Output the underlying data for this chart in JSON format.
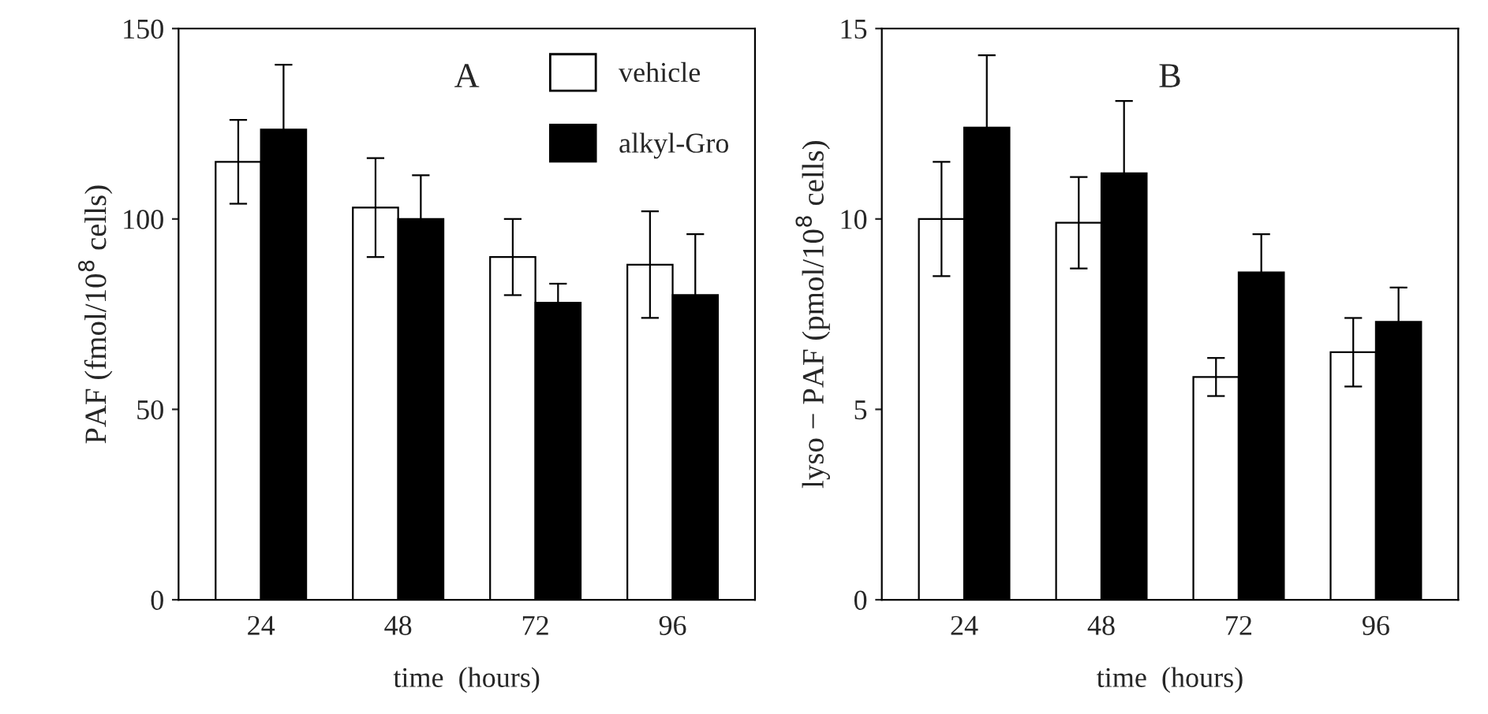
{
  "chart_data": [
    {
      "type": "bar",
      "categories": [
        "24",
        "48",
        "72",
        "96"
      ],
      "xlabel": "time  (hours)",
      "ylabel": "PAF (fmol/10$^{8}$ cells)",
      "ylim": [
        0,
        150
      ],
      "yticks": [
        0,
        50,
        100,
        150
      ],
      "annotations": [
        "A"
      ],
      "legend": "top right",
      "grid": false,
      "series": [
        {
          "name": "vehicle",
          "color": "#ffffff",
          "values": [
            115,
            103,
            90,
            88
          ],
          "errors": [
            11,
            13,
            10,
            14
          ]
        },
        {
          "name": "alkyl-Gro",
          "color": "#000000",
          "values": [
            123.5,
            100,
            78,
            80
          ],
          "errors": [
            17,
            11.5,
            5,
            16
          ]
        }
      ]
    },
    {
      "type": "bar",
      "categories": [
        "24",
        "48",
        "72",
        "96"
      ],
      "xlabel": "time  (hours)",
      "ylabel": "lyso − PAF (pmol/10$^{8}$ cells)",
      "ylim": [
        0,
        15
      ],
      "yticks": [
        0,
        5,
        10,
        15
      ],
      "annotations": [
        "B"
      ],
      "grid": false,
      "series": [
        {
          "color": "#ffffff",
          "values": [
            10,
            9.9,
            5.85,
            6.5
          ],
          "errors": [
            1.5,
            1.2,
            0.5,
            0.9
          ]
        },
        {
          "color": "#000000",
          "values": [
            12.4,
            11.2,
            8.6,
            7.3
          ],
          "errors": [
            1.9,
            1.9,
            1.0,
            0.9
          ]
        }
      ]
    }
  ]
}
